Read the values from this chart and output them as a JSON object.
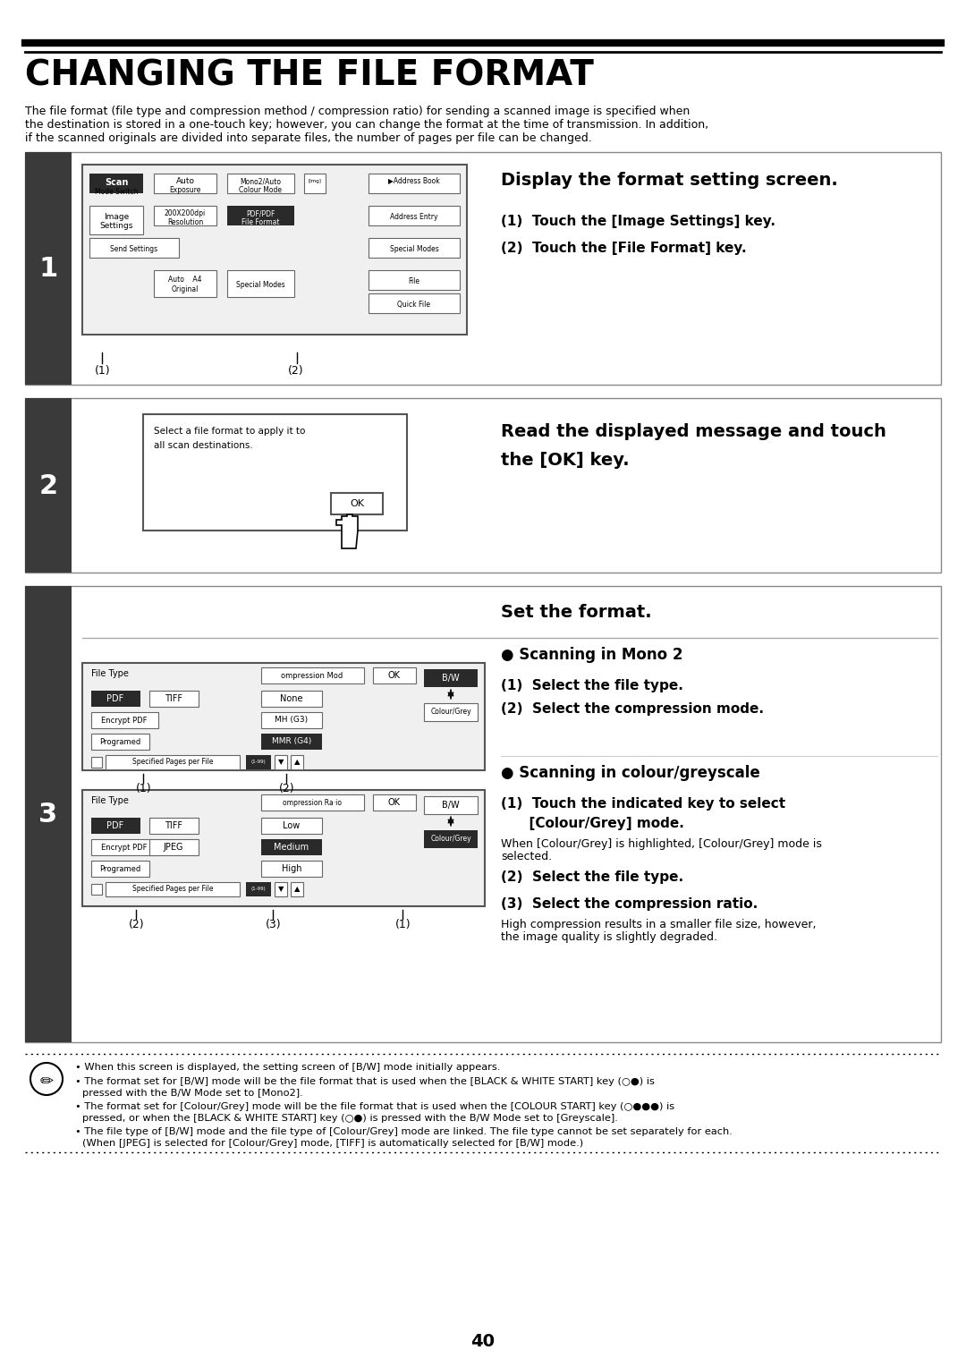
{
  "page_title": "CHANGING THE FILE FORMAT",
  "intro_line1": "The file format (file type and compression method / compression ratio) for sending a scanned image is specified when",
  "intro_line2": "the destination is stored in a one-touch key; however, you can change the format at the time of transmission. In addition,",
  "intro_line3": "if the scanned originals are divided into separate files, the number of pages per file can be changed.",
  "step1_title": "Display the format setting screen.",
  "step1_sub1": "(1)  Touch the [Image Settings] key.",
  "step1_sub2": "(2)  Touch the [File Format] key.",
  "step2_title1": "Read the displayed message and touch",
  "step2_title2": "the [OK] key.",
  "step3_title": "Set the format.",
  "step3_mono_head": "● Scanning in Mono 2",
  "step3_mono_1": "(1)  Select the file type.",
  "step3_mono_2": "(2)  Select the compression mode.",
  "step3_colour_head": "● Scanning in colour/greyscale",
  "step3_colour_1a": "(1)  Touch the indicated key to select",
  "step3_colour_1b": "      [Colour/Grey] mode.",
  "step3_colour_1c": "When [Colour/Grey] is highlighted, [Colour/Grey] mode is",
  "step3_colour_1d": "selected.",
  "step3_colour_2": "(2)  Select the file type.",
  "step3_colour_3": "(3)  Select the compression ratio.",
  "step3_colour_3b1": "High compression results in a smaller file size, however,",
  "step3_colour_3b2": "the image quality is slightly degraded.",
  "note_b1": "When this screen is displayed, the setting screen of [B/W] mode initially appears.",
  "note_b2a": "The format set for [B/W] mode will be the file format that is used when the [BLACK & WHITE START] key (○●) is",
  "note_b2b": "pressed with the B/W Mode set to [Mono2].",
  "note_b3a": "The format set for [Colour/Grey] mode will be the file format that is used when the [COLOUR START] key (○●●●) is",
  "note_b3b": "pressed, or when the [BLACK & WHITE START] key (○●) is pressed with the B/W Mode set to [Greyscale].",
  "note_b4a": "The file type of [B/W] mode and the file type of [Colour/Grey] mode are linked. The file type cannot be set separately for each.",
  "note_b4b": "(When [JPEG] is selected for [Colour/Grey] mode, [TIFF] is automatically selected for [B/W] mode.)",
  "page_number": "40",
  "dark_bar": "#3a3a3a",
  "light_gray": "#e8e8e8",
  "mid_gray": "#888888",
  "dark_btn": "#2a2a2a",
  "screen_bg": "#f0f0f0"
}
